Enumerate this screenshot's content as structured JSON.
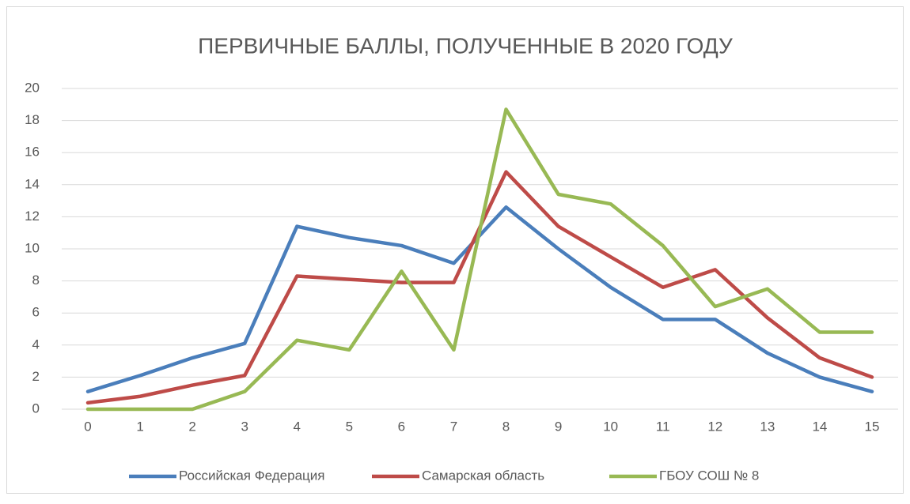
{
  "chart_data": {
    "type": "line",
    "title": "ПЕРВИЧНЫЕ БАЛЛЫ, ПОЛУЧЕННЫЕ В 2020 ГОДУ",
    "categories": [
      "0",
      "1",
      "2",
      "3",
      "4",
      "5",
      "6",
      "7",
      "8",
      "9",
      "10",
      "11",
      "12",
      "13",
      "14",
      "15"
    ],
    "series": [
      {
        "name": "Российская Федерация",
        "color": "#4a7ebb",
        "values": [
          1.1,
          2.1,
          3.2,
          4.1,
          11.4,
          10.7,
          10.2,
          9.1,
          12.6,
          10.0,
          7.6,
          5.6,
          5.6,
          3.5,
          2.0,
          1.1
        ]
      },
      {
        "name": "Самарская область",
        "color": "#be4b48",
        "values": [
          0.4,
          0.8,
          1.5,
          2.1,
          8.3,
          8.1,
          7.9,
          7.9,
          14.8,
          11.4,
          9.5,
          7.6,
          8.7,
          5.7,
          3.2,
          2.0
        ]
      },
      {
        "name": "ГБОУ СОШ № 8",
        "color": "#98b954",
        "values": [
          0,
          0,
          0,
          1.1,
          4.3,
          3.7,
          8.6,
          3.7,
          18.7,
          13.4,
          12.8,
          10.2,
          6.4,
          7.5,
          4.8,
          4.8
        ]
      }
    ],
    "ylim": [
      0,
      20
    ],
    "yticks": [
      0,
      2,
      4,
      6,
      8,
      10,
      12,
      14,
      16,
      18,
      20
    ],
    "grid": true,
    "legend": "bottom"
  }
}
